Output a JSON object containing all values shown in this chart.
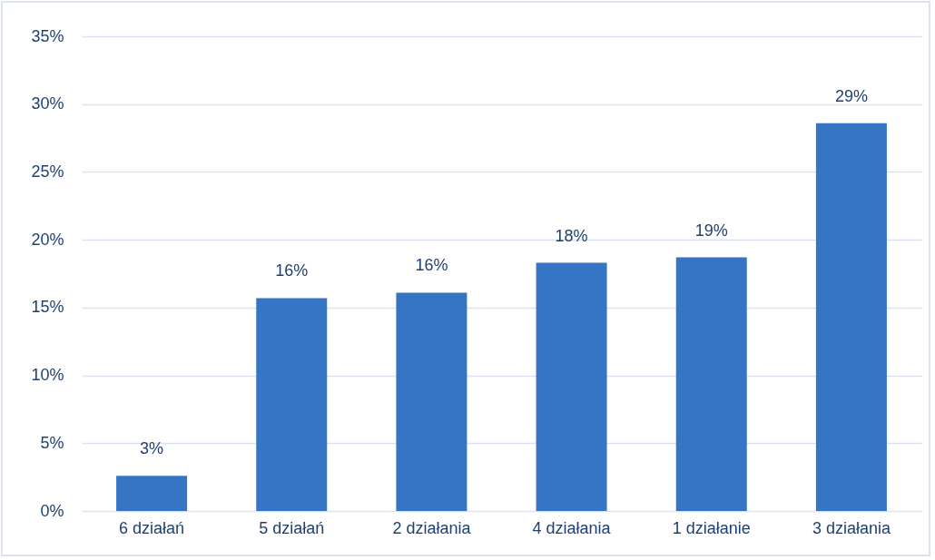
{
  "chart_data": {
    "type": "bar",
    "categories": [
      "6 działań",
      "5 działań",
      "2 działania",
      "4 działania",
      "1 działanie",
      "3 działania"
    ],
    "values": [
      2.6,
      15.7,
      16.1,
      18.3,
      18.7,
      28.6
    ],
    "value_labels": [
      "3%",
      "16%",
      "16%",
      "18%",
      "19%",
      "29%"
    ],
    "color": "#3674c4",
    "ylim": [
      0,
      35
    ],
    "yticks": [
      {
        "value": 0,
        "label": "0%"
      },
      {
        "value": 5,
        "label": "5%"
      },
      {
        "value": 10,
        "label": "10%"
      },
      {
        "value": 15,
        "label": "15%"
      },
      {
        "value": 20,
        "label": "20%"
      },
      {
        "value": 25,
        "label": "25%"
      },
      {
        "value": 30,
        "label": "30%"
      },
      {
        "value": 35,
        "label": "35%"
      }
    ],
    "grid": true
  }
}
